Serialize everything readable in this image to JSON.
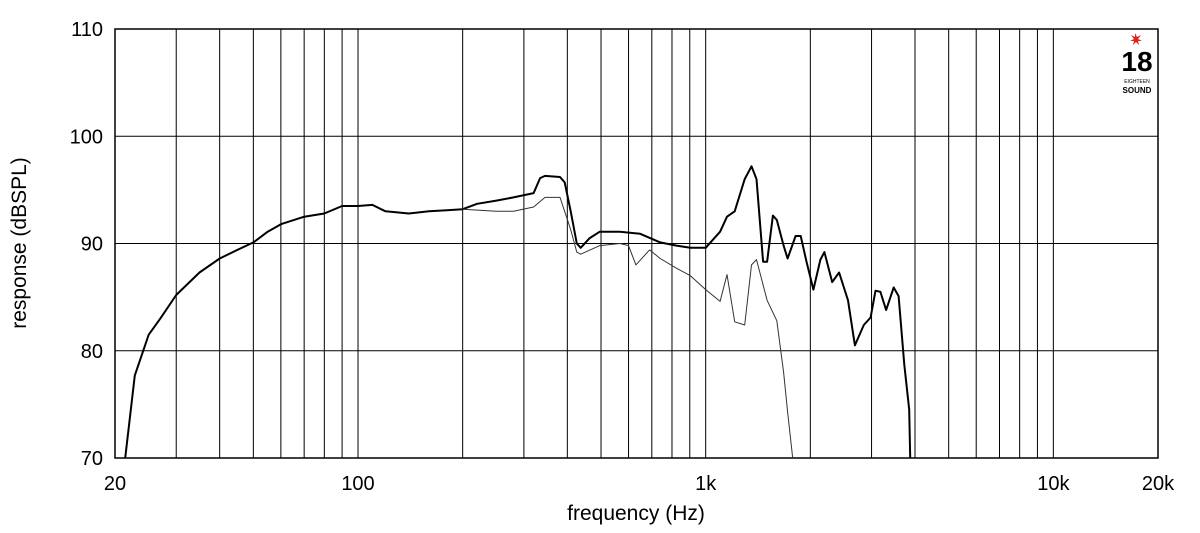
{
  "chart_data": {
    "type": "line",
    "xlabel": "frequency (Hz)",
    "ylabel": "response (dBSPL)",
    "xscale": "log",
    "grid": true,
    "xlim": [
      20,
      20000
    ],
    "ylim": [
      70,
      110
    ],
    "xticks": [
      20,
      100,
      {
        "value": 1000,
        "label": "1k"
      },
      {
        "value": 10000,
        "label": "10k"
      },
      {
        "value": 20000,
        "label": "20k"
      }
    ],
    "xminor_ticks": [
      30,
      40,
      50,
      60,
      70,
      80,
      90,
      200,
      300,
      400,
      500,
      600,
      700,
      800,
      900,
      2000,
      3000,
      4000,
      5000,
      6000,
      7000,
      8000,
      9000
    ],
    "yticks": [
      70,
      80,
      90,
      100,
      110
    ],
    "series": [
      {
        "color": "#000000",
        "width": 2,
        "x": [
          21.4,
          22.8,
          25,
          27,
          30,
          35,
          40,
          45,
          50,
          55,
          60,
          70,
          80,
          90,
          100,
          110,
          120,
          140,
          160,
          180,
          200,
          220,
          250,
          280,
          320,
          334,
          345,
          381,
          393,
          409,
          426,
          437,
          464,
          496,
          567,
          648,
          740,
          824,
          904,
          1000,
          1100,
          1152,
          1212,
          1295,
          1355,
          1400,
          1463,
          1502,
          1561,
          1602,
          1676,
          1721,
          1814,
          1876,
          1950,
          2041,
          2138,
          2195,
          2312,
          2420,
          2566,
          2687,
          2849,
          2981,
          3079,
          3181,
          3303,
          3475,
          3588,
          3727,
          3849,
          3874
        ],
        "values": [
          70,
          77.7,
          81.5,
          83,
          85.2,
          87.3,
          88.6,
          89.4,
          90.1,
          91.1,
          91.8,
          92.5,
          92.8,
          93.5,
          93.5,
          93.6,
          93.0,
          92.8,
          93.0,
          93.1,
          93.2,
          93.7,
          94.0,
          94.3,
          94.7,
          96.1,
          96.3,
          96.2,
          95.7,
          93.0,
          90.0,
          89.6,
          90.5,
          91.1,
          91.1,
          90.9,
          90.1,
          89.8,
          89.6,
          89.6,
          91.1,
          92.5,
          93.0,
          96.0,
          97.2,
          96.0,
          88.3,
          88.3,
          92.6,
          92.2,
          89.8,
          88.6,
          90.7,
          90.7,
          88.3,
          85.7,
          88.5,
          89.2,
          86.4,
          87.3,
          84.7,
          80.5,
          82.4,
          83.1,
          85.6,
          85.5,
          83.8,
          85.9,
          85.1,
          78.7,
          74.5,
          70
        ]
      },
      {
        "color": "#333333",
        "width": 1,
        "x": [
          200,
          250,
          280,
          320,
          345,
          381,
          409,
          426,
          437,
          496,
          567,
          600,
          630,
          690,
          740,
          824,
          904,
          1000,
          1100,
          1152,
          1212,
          1295,
          1355,
          1400,
          1502,
          1602,
          1676,
          1721,
          1780
        ],
        "values": [
          93.2,
          93.0,
          93.0,
          93.4,
          94.3,
          94.3,
          91.3,
          89.2,
          89.0,
          89.8,
          90.0,
          89.8,
          88.0,
          89.4,
          88.6,
          87.7,
          87.0,
          85.7,
          84.6,
          87.1,
          82.7,
          82.4,
          88.0,
          88.5,
          84.7,
          82.8,
          78.0,
          74.3,
          70
        ]
      }
    ]
  },
  "logo": {
    "number": "18",
    "line1": "EIGHTEEN",
    "line2": "SOUND"
  }
}
